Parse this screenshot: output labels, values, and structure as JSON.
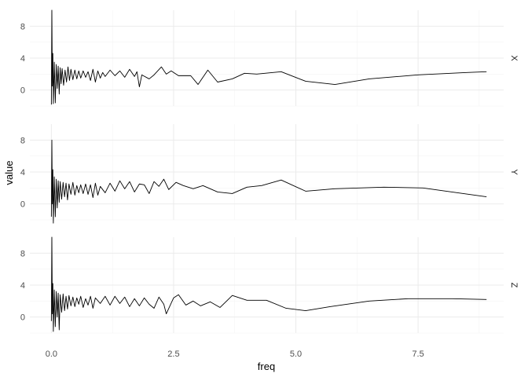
{
  "chart_data": {
    "type": "line",
    "xlabel": "freq",
    "ylabel": "value",
    "xlim": [
      -0.44,
      9.25
    ],
    "ylim": [
      -2.0,
      10.0
    ],
    "x_ticks": [
      0,
      2.5,
      5,
      7.5
    ],
    "x_tick_labels": [
      "0.0",
      "2.5",
      "5.0",
      "7.5"
    ],
    "y_ticks": [
      0,
      4,
      8
    ],
    "y_tick_labels": [
      "0",
      "4",
      "8"
    ],
    "grid": true,
    "facets": [
      {
        "label": "X",
        "points": [
          [
            0.0,
            -1.8
          ],
          [
            0.01,
            10.0
          ],
          [
            0.02,
            0.5
          ],
          [
            0.03,
            4.6
          ],
          [
            0.04,
            -1.7
          ],
          [
            0.06,
            3.5
          ],
          [
            0.08,
            -1.6
          ],
          [
            0.1,
            3.2
          ],
          [
            0.12,
            0.2
          ],
          [
            0.14,
            3.0
          ],
          [
            0.16,
            -0.5
          ],
          [
            0.18,
            2.8
          ],
          [
            0.2,
            0.8
          ],
          [
            0.22,
            2.7
          ],
          [
            0.25,
            0.6
          ],
          [
            0.28,
            2.5
          ],
          [
            0.31,
            1.0
          ],
          [
            0.34,
            2.9
          ],
          [
            0.37,
            1.2
          ],
          [
            0.4,
            2.6
          ],
          [
            0.44,
            1.3
          ],
          [
            0.48,
            2.5
          ],
          [
            0.52,
            1.4
          ],
          [
            0.56,
            2.4
          ],
          [
            0.6,
            1.5
          ],
          [
            0.65,
            2.4
          ],
          [
            0.7,
            1.6
          ],
          [
            0.75,
            2.3
          ],
          [
            0.8,
            1.2
          ],
          [
            0.85,
            2.6
          ],
          [
            0.9,
            1.0
          ],
          [
            0.95,
            2.4
          ],
          [
            1.0,
            1.5
          ],
          [
            1.05,
            2.2
          ],
          [
            1.1,
            1.7
          ],
          [
            1.2,
            2.5
          ],
          [
            1.3,
            1.8
          ],
          [
            1.4,
            2.4
          ],
          [
            1.5,
            1.6
          ],
          [
            1.6,
            2.6
          ],
          [
            1.7,
            1.7
          ],
          [
            1.75,
            2.3
          ],
          [
            1.8,
            0.4
          ],
          [
            1.85,
            1.9
          ],
          [
            2.0,
            1.4
          ],
          [
            2.1,
            1.9
          ],
          [
            2.25,
            2.9
          ],
          [
            2.35,
            2.0
          ],
          [
            2.45,
            2.4
          ],
          [
            2.6,
            1.8
          ],
          [
            2.85,
            1.8
          ],
          [
            3.0,
            0.7
          ],
          [
            3.2,
            2.5
          ],
          [
            3.4,
            1.0
          ],
          [
            3.7,
            1.4
          ],
          [
            3.95,
            2.1
          ],
          [
            4.2,
            2.0
          ],
          [
            4.7,
            2.3
          ],
          [
            5.2,
            1.1
          ],
          [
            5.8,
            0.7
          ],
          [
            6.5,
            1.4
          ],
          [
            7.5,
            1.9
          ],
          [
            8.5,
            2.2
          ],
          [
            8.9,
            2.3
          ]
        ]
      },
      {
        "label": "Y",
        "points": [
          [
            0.0,
            -1.6
          ],
          [
            0.01,
            8.0
          ],
          [
            0.02,
            0.0
          ],
          [
            0.03,
            4.3
          ],
          [
            0.04,
            -2.4
          ],
          [
            0.06,
            3.4
          ],
          [
            0.08,
            -1.6
          ],
          [
            0.1,
            3.1
          ],
          [
            0.12,
            -0.5
          ],
          [
            0.14,
            2.9
          ],
          [
            0.16,
            0.2
          ],
          [
            0.18,
            2.8
          ],
          [
            0.21,
            0.6
          ],
          [
            0.24,
            2.7
          ],
          [
            0.27,
            0.9
          ],
          [
            0.3,
            2.6
          ],
          [
            0.33,
            0.5
          ],
          [
            0.36,
            2.5
          ],
          [
            0.4,
            1.2
          ],
          [
            0.44,
            2.7
          ],
          [
            0.48,
            1.1
          ],
          [
            0.52,
            2.3
          ],
          [
            0.56,
            1.4
          ],
          [
            0.6,
            2.4
          ],
          [
            0.65,
            1.3
          ],
          [
            0.7,
            2.5
          ],
          [
            0.75,
            1.2
          ],
          [
            0.8,
            2.4
          ],
          [
            0.85,
            0.8
          ],
          [
            0.9,
            2.6
          ],
          [
            0.95,
            1.1
          ],
          [
            1.0,
            2.2
          ],
          [
            1.1,
            1.4
          ],
          [
            1.2,
            2.6
          ],
          [
            1.3,
            1.6
          ],
          [
            1.4,
            2.9
          ],
          [
            1.5,
            1.9
          ],
          [
            1.6,
            2.8
          ],
          [
            1.7,
            1.5
          ],
          [
            1.8,
            2.5
          ],
          [
            1.9,
            2.4
          ],
          [
            2.0,
            1.3
          ],
          [
            2.1,
            2.8
          ],
          [
            2.2,
            2.2
          ],
          [
            2.3,
            3.1
          ],
          [
            2.4,
            1.8
          ],
          [
            2.55,
            2.7
          ],
          [
            2.7,
            2.3
          ],
          [
            2.9,
            1.9
          ],
          [
            3.1,
            2.3
          ],
          [
            3.4,
            1.5
          ],
          [
            3.7,
            1.3
          ],
          [
            4.0,
            2.1
          ],
          [
            4.3,
            2.3
          ],
          [
            4.7,
            3.0
          ],
          [
            5.2,
            1.6
          ],
          [
            5.8,
            1.9
          ],
          [
            6.8,
            2.1
          ],
          [
            7.6,
            2.0
          ],
          [
            8.9,
            0.9
          ]
        ]
      },
      {
        "label": "Z",
        "points": [
          [
            0.0,
            -0.5
          ],
          [
            0.01,
            10.0
          ],
          [
            0.02,
            0.4
          ],
          [
            0.03,
            4.2
          ],
          [
            0.04,
            -1.8
          ],
          [
            0.06,
            3.4
          ],
          [
            0.08,
            -1.2
          ],
          [
            0.1,
            3.2
          ],
          [
            0.12,
            0.0
          ],
          [
            0.14,
            3.0
          ],
          [
            0.16,
            -1.6
          ],
          [
            0.18,
            2.8
          ],
          [
            0.21,
            0.6
          ],
          [
            0.24,
            2.9
          ],
          [
            0.27,
            0.8
          ],
          [
            0.3,
            2.6
          ],
          [
            0.33,
            1.0
          ],
          [
            0.36,
            2.7
          ],
          [
            0.4,
            1.4
          ],
          [
            0.44,
            2.5
          ],
          [
            0.48,
            1.3
          ],
          [
            0.52,
            2.4
          ],
          [
            0.56,
            1.6
          ],
          [
            0.6,
            2.6
          ],
          [
            0.65,
            1.2
          ],
          [
            0.7,
            2.3
          ],
          [
            0.75,
            1.5
          ],
          [
            0.8,
            2.6
          ],
          [
            0.85,
            1.1
          ],
          [
            0.9,
            2.4
          ],
          [
            1.0,
            1.7
          ],
          [
            1.1,
            2.6
          ],
          [
            1.2,
            1.5
          ],
          [
            1.3,
            2.6
          ],
          [
            1.4,
            1.7
          ],
          [
            1.5,
            2.5
          ],
          [
            1.6,
            1.3
          ],
          [
            1.7,
            2.3
          ],
          [
            1.8,
            1.4
          ],
          [
            1.9,
            2.4
          ],
          [
            2.0,
            1.6
          ],
          [
            2.1,
            1.1
          ],
          [
            2.2,
            2.5
          ],
          [
            2.3,
            1.6
          ],
          [
            2.35,
            0.4
          ],
          [
            2.5,
            2.4
          ],
          [
            2.6,
            2.8
          ],
          [
            2.75,
            1.5
          ],
          [
            2.9,
            2.0
          ],
          [
            3.05,
            1.4
          ],
          [
            3.25,
            1.9
          ],
          [
            3.45,
            1.2
          ],
          [
            3.7,
            2.7
          ],
          [
            4.0,
            2.1
          ],
          [
            4.4,
            2.1
          ],
          [
            4.8,
            1.1
          ],
          [
            5.2,
            0.8
          ],
          [
            5.7,
            1.3
          ],
          [
            6.5,
            2.0
          ],
          [
            7.3,
            2.3
          ],
          [
            8.2,
            2.3
          ],
          [
            8.9,
            2.2
          ]
        ]
      }
    ]
  }
}
